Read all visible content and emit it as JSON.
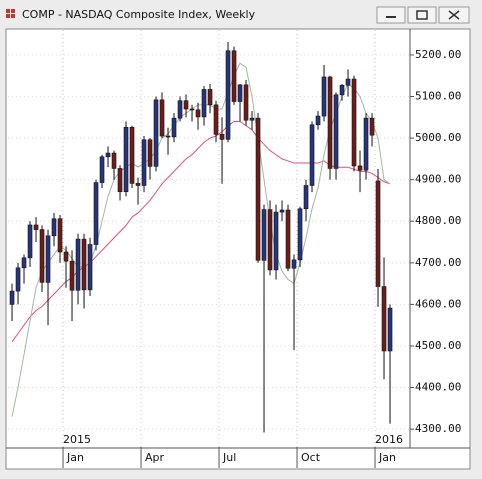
{
  "chart_data": {
    "type": "candlestick",
    "title": "COMP - NASDAQ Composite Index, Weekly",
    "open": [
      4600,
      4632,
      4688,
      4712,
      4791,
      4780,
      4653,
      4765,
      4806,
      4726,
      4704,
      4634,
      4757,
      4635,
      4744,
      4893,
      4955,
      4964,
      4927,
      4871,
      5026,
      4891,
      4886,
      4996,
      4932,
      5092,
      5005,
      5003,
      5048,
      5090,
      5070,
      5068,
      5051,
      5117,
      5080,
      5009,
      4997,
      5210,
      5088,
      5128,
      5043,
      5048,
      4706,
      4828,
      4683,
      4822,
      4827,
      4687,
      4707,
      4830,
      4886,
      5032,
      5053,
      5147,
      4927,
      5104,
      5127,
      5142,
      4933,
      4923,
      5048,
      4897,
      4643,
      4488
    ],
    "high": [
      4650,
      4700,
      4720,
      4800,
      4810,
      4790,
      4780,
      4820,
      4815,
      4740,
      4730,
      4770,
      4770,
      4760,
      4900,
      4960,
      4980,
      4970,
      4935,
      5040,
      5030,
      4905,
      5005,
      5000,
      5100,
      5110,
      5025,
      5060,
      5100,
      5105,
      5080,
      5085,
      5125,
      5130,
      5090,
      5050,
      5231,
      5220,
      5130,
      5140,
      5065,
      5060,
      4840,
      4850,
      4840,
      4850,
      4840,
      4720,
      4835,
      4900,
      5040,
      5065,
      5176,
      5150,
      5110,
      5130,
      5165,
      5150,
      4970,
      5060,
      5060,
      4926,
      4713,
      4600
    ],
    "low": [
      4560,
      4600,
      4650,
      4690,
      4750,
      4630,
      4550,
      4740,
      4700,
      4640,
      4560,
      4600,
      4590,
      4620,
      4730,
      4880,
      4930,
      4900,
      4850,
      4860,
      4880,
      4840,
      4870,
      4900,
      4920,
      5000,
      4960,
      4990,
      5040,
      5050,
      5040,
      5020,
      5030,
      5060,
      4990,
      4890,
      4990,
      5080,
      5040,
      5030,
      5020,
      4700,
      4292,
      4670,
      4660,
      4800,
      4680,
      4490,
      4690,
      4800,
      4870,
      5020,
      5040,
      4900,
      4900,
      5090,
      5100,
      4920,
      4870,
      4900,
      4980,
      4594,
      4420,
      4313
    ],
    "close": [
      4632,
      4688,
      4712,
      4791,
      4780,
      4653,
      4765,
      4806,
      4726,
      4704,
      4634,
      4757,
      4635,
      4744,
      4893,
      4955,
      4964,
      4927,
      4871,
      5026,
      4891,
      4886,
      4996,
      4932,
      5092,
      5005,
      5003,
      5048,
      5090,
      5070,
      5068,
      5051,
      5117,
      5080,
      5009,
      4997,
      5210,
      5088,
      5128,
      5043,
      5048,
      4706,
      4828,
      4683,
      4822,
      4827,
      4687,
      4707,
      4830,
      4886,
      5032,
      5053,
      5147,
      4927,
      5104,
      5127,
      5142,
      4933,
      4923,
      5048,
      5007,
      4643,
      4488,
      4591
    ],
    "up_color": "#27357a",
    "down_color": "#6e1e1a",
    "moving_averages": [
      {
        "color": "#e0507a",
        "values": [
          4510,
          4530,
          4550,
          4570,
          4585,
          4595,
          4610,
          4625,
          4640,
          4655,
          4665,
          4680,
          4690,
          4700,
          4715,
          4730,
          4745,
          4760,
          4775,
          4790,
          4810,
          4820,
          4835,
          4850,
          4870,
          4890,
          4905,
          4920,
          4935,
          4950,
          4960,
          4975,
          4990,
          5000,
          5005,
          5015,
          5030,
          5040,
          5040,
          5030,
          5020,
          5000,
          4985,
          4970,
          4960,
          4950,
          4945,
          4940,
          4940,
          4940,
          4940,
          4940,
          4945,
          4935,
          4930,
          4930,
          4930,
          4925,
          4920,
          4920,
          4915,
          4905,
          4895,
          4890
        ]
      },
      {
        "color": "#9fb89f",
        "values": [
          4330,
          4400,
          4480,
          4560,
          4640,
          4680,
          4700,
          4720,
          4740,
          4730,
          4710,
          4690,
          4690,
          4700,
          4740,
          4800,
          4860,
          4900,
          4920,
          4930,
          4940,
          4930,
          4940,
          4950,
          4970,
          5000,
          5010,
          5030,
          5050,
          5060,
          5070,
          5080,
          5080,
          5080,
          5070,
          5070,
          5110,
          5150,
          5180,
          5170,
          5100,
          5000,
          4900,
          4800,
          4720,
          4680,
          4660,
          4650,
          4700,
          4760,
          4830,
          4880,
          4960,
          5020,
          5060,
          5100,
          5130,
          5120,
          5100,
          5060,
          5040,
          5000,
          4900,
          4890
        ]
      }
    ],
    "xlim": [
      -0.67,
      66.33
    ],
    "xticks": [
      {
        "value": 9,
        "label": "Jan"
      },
      {
        "value": 22,
        "label": "Apr"
      },
      {
        "value": 35,
        "label": "Jul"
      },
      {
        "value": 48,
        "label": "Oct"
      },
      {
        "value": 61,
        "label": "Jan"
      }
    ],
    "year_labels": [
      {
        "value": 9,
        "label": "2015"
      },
      {
        "value": 61,
        "label": "2016"
      }
    ],
    "ylim": [
      4257,
      5260
    ],
    "yticks": [
      {
        "value": 4300,
        "label": "4300.00"
      },
      {
        "value": 4400,
        "label": "4400.00"
      },
      {
        "value": 4500,
        "label": "4500.00"
      },
      {
        "value": 4600,
        "label": "4600.00"
      },
      {
        "value": 4700,
        "label": "4700.00"
      },
      {
        "value": 4800,
        "label": "4800.00"
      },
      {
        "value": 4900,
        "label": "4900.00"
      },
      {
        "value": 5000,
        "label": "5000.00"
      },
      {
        "value": 5100,
        "label": "5100.00"
      },
      {
        "value": 5200,
        "label": "5200.00"
      }
    ],
    "grid": true
  }
}
